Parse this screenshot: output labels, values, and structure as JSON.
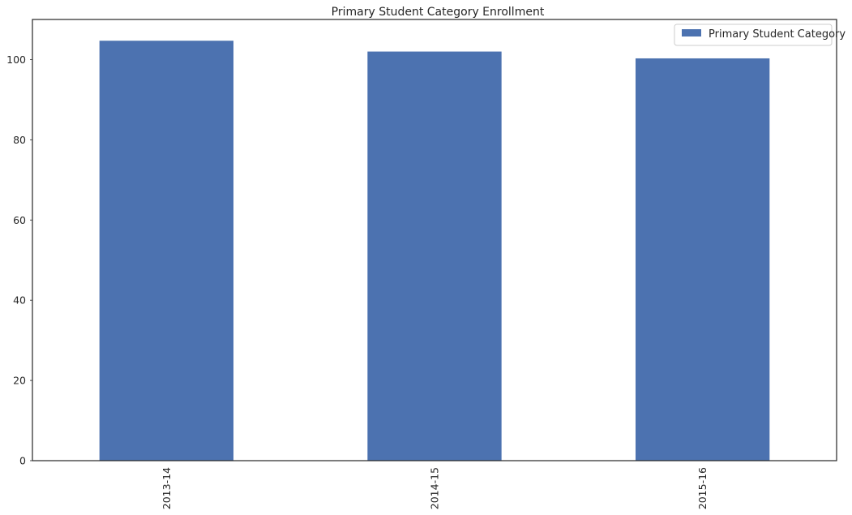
{
  "chart_data": {
    "type": "bar",
    "title": "Primary Student Category Enrollment",
    "xlabel": "",
    "ylabel": "",
    "categories": [
      "2013-14",
      "2014-15",
      "2015-16"
    ],
    "series": [
      {
        "name": "Primary Student Category",
        "values": [
          104.7,
          102.0,
          100.3
        ],
        "color": "#4c72b0"
      }
    ],
    "ylim": [
      0,
      110
    ],
    "yticks": [
      0,
      20,
      40,
      60,
      80,
      100
    ],
    "ytick_labels": [
      "0",
      "20",
      "40",
      "60",
      "80",
      "100"
    ],
    "grid": false,
    "legend_position": "top-right",
    "x_tick_rotation": "vertical"
  }
}
